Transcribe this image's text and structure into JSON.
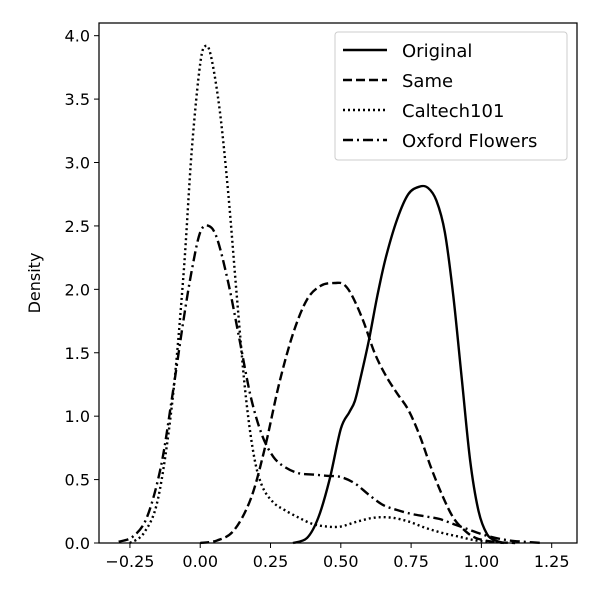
{
  "chart_data": {
    "type": "line",
    "title": "",
    "xlabel": "",
    "ylabel": "Density",
    "xlim": [
      -0.36,
      1.34
    ],
    "ylim": [
      0,
      4.1
    ],
    "xticks": [
      -0.25,
      0.0,
      0.25,
      0.5,
      0.75,
      1.0,
      1.25
    ],
    "xtick_labels": [
      "−0.25",
      "0.00",
      "0.25",
      "0.50",
      "0.75",
      "1.00",
      "1.25"
    ],
    "yticks": [
      0.0,
      0.5,
      1.0,
      1.5,
      2.0,
      2.5,
      3.0,
      3.5,
      4.0
    ],
    "ytick_labels": [
      "0.0",
      "0.5",
      "1.0",
      "1.5",
      "2.0",
      "2.5",
      "3.0",
      "3.5",
      "4.0"
    ],
    "grid": false,
    "legend_position": "top-right",
    "series": [
      {
        "name": "Original",
        "dash": "solid",
        "x": [
          0.33,
          0.38,
          0.42,
          0.46,
          0.5,
          0.53,
          0.55,
          0.57,
          0.6,
          0.63,
          0.66,
          0.7,
          0.74,
          0.78,
          0.81,
          0.84,
          0.87,
          0.9,
          0.93,
          0.96,
          0.99,
          1.02,
          1.05,
          1.08
        ],
        "y": [
          0.0,
          0.04,
          0.2,
          0.5,
          0.9,
          1.03,
          1.12,
          1.3,
          1.6,
          1.95,
          2.25,
          2.55,
          2.75,
          2.81,
          2.8,
          2.7,
          2.45,
          1.95,
          1.3,
          0.65,
          0.25,
          0.07,
          0.02,
          0.0
        ]
      },
      {
        "name": "Same",
        "dash": "dashed",
        "x": [
          0.0,
          0.06,
          0.12,
          0.18,
          0.23,
          0.28,
          0.33,
          0.38,
          0.43,
          0.48,
          0.51,
          0.54,
          0.58,
          0.62,
          0.66,
          0.7,
          0.74,
          0.78,
          0.82,
          0.86,
          0.9,
          0.94,
          0.98,
          1.04,
          1.12
        ],
        "y": [
          0.0,
          0.02,
          0.1,
          0.35,
          0.75,
          1.25,
          1.65,
          1.92,
          2.03,
          2.05,
          2.04,
          1.95,
          1.75,
          1.5,
          1.32,
          1.18,
          1.05,
          0.85,
          0.6,
          0.38,
          0.2,
          0.1,
          0.04,
          0.01,
          0.0
        ]
      },
      {
        "name": "Caltech101",
        "dash": "dotted",
        "x": [
          -0.25,
          -0.2,
          -0.15,
          -0.1,
          -0.06,
          -0.03,
          0.0,
          0.02,
          0.04,
          0.07,
          0.1,
          0.13,
          0.16,
          0.19,
          0.22,
          0.26,
          0.3,
          0.35,
          0.4,
          0.45,
          0.5,
          0.56,
          0.62,
          0.68,
          0.74,
          0.8,
          0.86,
          0.92,
          0.98,
          1.03,
          1.08
        ],
        "y": [
          0.0,
          0.08,
          0.35,
          1.1,
          2.1,
          3.1,
          3.78,
          3.92,
          3.82,
          3.4,
          2.75,
          1.95,
          1.2,
          0.7,
          0.45,
          0.32,
          0.26,
          0.2,
          0.15,
          0.13,
          0.13,
          0.17,
          0.2,
          0.2,
          0.17,
          0.12,
          0.08,
          0.05,
          0.02,
          0.01,
          0.0
        ]
      },
      {
        "name": "Oxford Flowers",
        "dash": "dashdot",
        "x": [
          -0.29,
          -0.24,
          -0.19,
          -0.14,
          -0.1,
          -0.06,
          -0.03,
          0.0,
          0.03,
          0.06,
          0.1,
          0.14,
          0.18,
          0.22,
          0.26,
          0.3,
          0.35,
          0.4,
          0.45,
          0.5,
          0.55,
          0.6,
          0.65,
          0.7,
          0.75,
          0.8,
          0.85,
          0.9,
          0.95,
          1.0,
          1.05,
          1.1,
          1.15,
          1.22
        ],
        "y": [
          0.01,
          0.05,
          0.2,
          0.6,
          1.15,
          1.75,
          2.15,
          2.45,
          2.5,
          2.4,
          2.05,
          1.6,
          1.15,
          0.85,
          0.68,
          0.6,
          0.55,
          0.54,
          0.53,
          0.52,
          0.47,
          0.38,
          0.3,
          0.26,
          0.23,
          0.21,
          0.19,
          0.15,
          0.11,
          0.07,
          0.04,
          0.02,
          0.01,
          0.0
        ]
      }
    ]
  }
}
